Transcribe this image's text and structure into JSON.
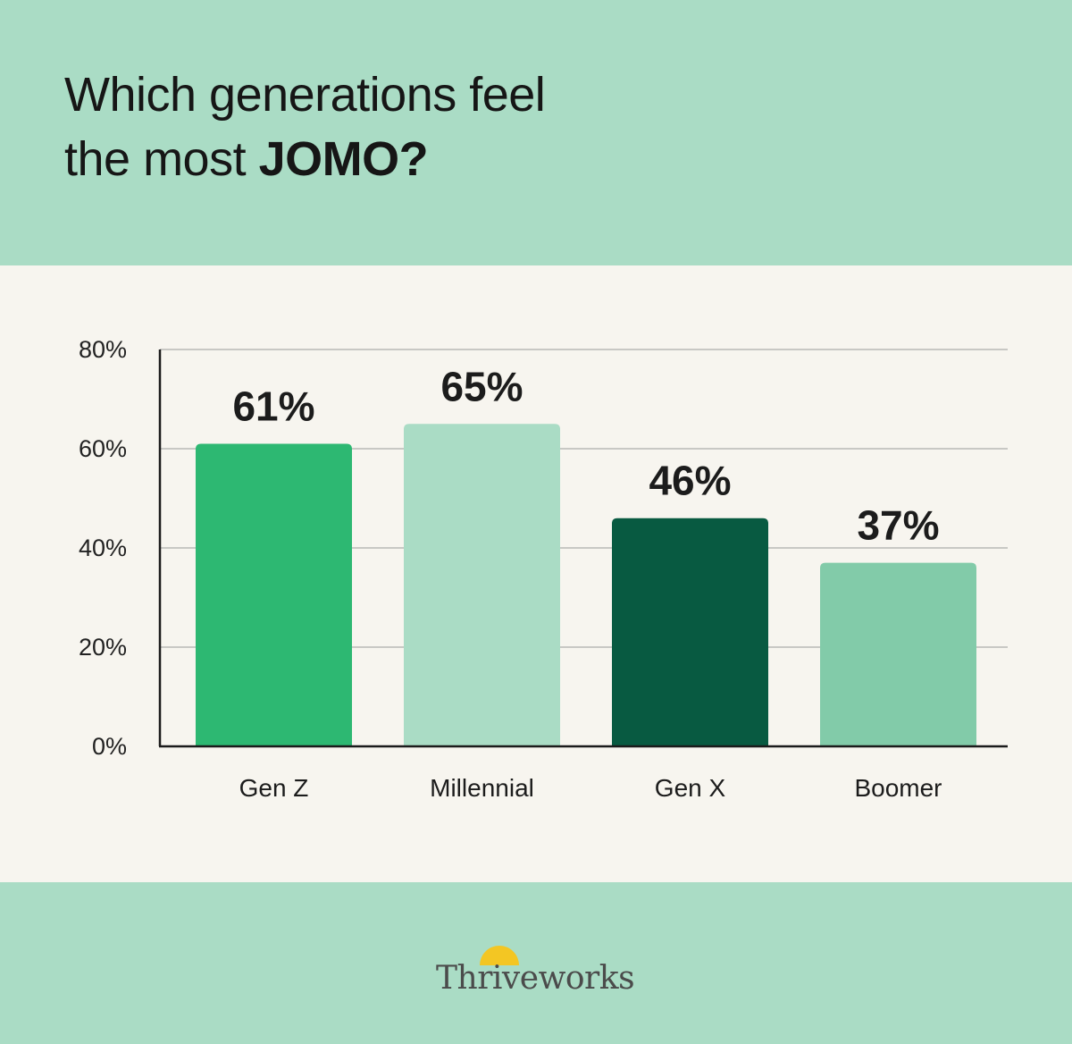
{
  "header": {
    "title_line1": "Which generations feel",
    "title_line2_prefix": "the most ",
    "title_line2_bold": "JOMO?"
  },
  "chart_data": {
    "type": "bar",
    "categories": [
      "Gen Z",
      "Millennial",
      "Gen X",
      "Boomer"
    ],
    "values": [
      61,
      65,
      46,
      37
    ],
    "data_labels": [
      "61%",
      "65%",
      "46%",
      "37%"
    ],
    "bar_colors": [
      "#2db872",
      "#aadcc5",
      "#085a41",
      "#82cba9"
    ],
    "ylim": [
      0,
      80
    ],
    "yticks": [
      0,
      20,
      40,
      60,
      80
    ],
    "ytick_labels": [
      "0%",
      "20%",
      "40%",
      "60%",
      "80%"
    ],
    "grid": true,
    "legend": "none"
  },
  "brand": {
    "name": "Thriveworks",
    "icon": "sun-icon",
    "sun_color": "#f3c623"
  }
}
